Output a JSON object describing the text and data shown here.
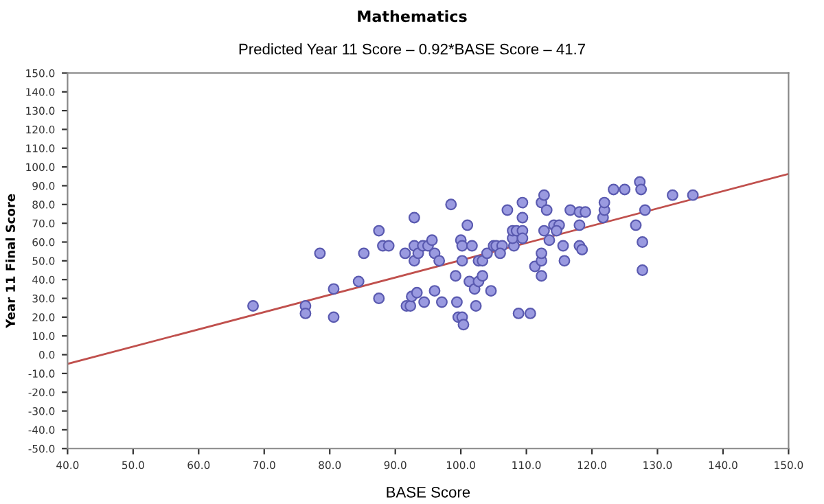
{
  "chart_data": {
    "type": "scatter",
    "title": "Mathematics",
    "subtitle": "Predicted Year 11 Score – 0.92*BASE Score – 41.7",
    "xlabel": "BASE Score",
    "ylabel": "Year 11 Final Score",
    "series": [
      {
        "color": "#9a9ae0",
        "marker": "circle",
        "x": [
          68.3,
          76.3,
          76.3,
          78.5,
          80.6,
          80.6,
          85.2,
          84.4,
          87.5,
          88.1,
          89.0,
          87.5,
          91.5,
          91.7,
          92.9,
          92.9,
          92.9,
          93.5,
          94.2,
          95.0,
          95.6,
          96.0,
          96.7,
          92.3,
          92.5,
          93.3,
          94.4,
          96.0,
          97.1,
          98.5,
          99.2,
          99.4,
          99.6,
          100.2,
          100.4,
          100.0,
          100.2,
          101.0,
          100.2,
          101.7,
          101.3,
          102.1,
          102.7,
          103.3,
          102.3,
          102.7,
          103.3,
          104.0,
          104.6,
          105.0,
          105.4,
          106.3,
          106.0,
          107.1,
          108.1,
          107.9,
          107.9,
          108.5,
          109.4,
          109.4,
          108.8,
          110.6,
          109.4,
          109.4,
          111.3,
          112.3,
          112.3,
          112.3,
          112.7,
          112.3,
          112.7,
          113.1,
          113.5,
          114.2,
          115.0,
          114.6,
          115.6,
          115.8,
          116.7,
          118.1,
          118.1,
          119.0,
          118.1,
          118.5,
          121.7,
          121.9,
          121.9,
          123.3,
          125.0,
          126.7,
          127.3,
          127.5,
          128.1,
          127.7,
          127.7,
          132.3,
          135.4
        ],
        "values": [
          26,
          26,
          22,
          54,
          35,
          20,
          54,
          39,
          66,
          58,
          58,
          30,
          54,
          26,
          73,
          58,
          50,
          54,
          58,
          58,
          61,
          54,
          50,
          26,
          31,
          33,
          28,
          34,
          28,
          80,
          42,
          28,
          20,
          20,
          16,
          61,
          58,
          69,
          50,
          58,
          39,
          35,
          39,
          42,
          26,
          50,
          50,
          54,
          34,
          58,
          58,
          58,
          54,
          77,
          58,
          62,
          66,
          66,
          66,
          62,
          22,
          22,
          81,
          73,
          47,
          42,
          50,
          54,
          66,
          81,
          85,
          77,
          61,
          69,
          69,
          66,
          58,
          50,
          77,
          69,
          76,
          76,
          58,
          56,
          73,
          77,
          81,
          88,
          88,
          69,
          92,
          88,
          77,
          60,
          45,
          85,
          85
        ]
      },
      {
        "type": "line",
        "color": "#c0504d",
        "x": [
          40,
          150
        ],
        "values": [
          -4.9,
          96.3
        ]
      }
    ],
    "xlim": [
      40,
      150
    ],
    "ylim": [
      -50,
      150
    ],
    "xticks": [
      {
        "value": 40,
        "label": "40.0"
      },
      {
        "value": 50,
        "label": "50.0"
      },
      {
        "value": 60,
        "label": "60.0"
      },
      {
        "value": 70,
        "label": "70.0"
      },
      {
        "value": 80,
        "label": "80.0"
      },
      {
        "value": 90,
        "label": "90.0"
      },
      {
        "value": 100,
        "label": "100.0"
      },
      {
        "value": 110,
        "label": "110.0"
      },
      {
        "value": 120,
        "label": "120.0"
      },
      {
        "value": 130,
        "label": "130.0"
      },
      {
        "value": 140,
        "label": "140.0"
      },
      {
        "value": 150,
        "label": "150.0"
      }
    ],
    "yticks": [
      {
        "value": -50,
        "label": "-50.0"
      },
      {
        "value": -40,
        "label": "-40.0"
      },
      {
        "value": -30,
        "label": "-30.0"
      },
      {
        "value": -20,
        "label": "-20.0"
      },
      {
        "value": -10,
        "label": "-10.0"
      },
      {
        "value": 0,
        "label": "0.0"
      },
      {
        "value": 10,
        "label": "10.0"
      },
      {
        "value": 20,
        "label": "20.0"
      },
      {
        "value": 30,
        "label": "30.0"
      },
      {
        "value": 40,
        "label": "40.0"
      },
      {
        "value": 50,
        "label": "50.0"
      },
      {
        "value": 60,
        "label": "60.0"
      },
      {
        "value": 70,
        "label": "70.0"
      },
      {
        "value": 80,
        "label": "80.0"
      },
      {
        "value": 90,
        "label": "90.0"
      },
      {
        "value": 100,
        "label": "100.0"
      },
      {
        "value": 110,
        "label": "110.0"
      },
      {
        "value": 120,
        "label": "120.0"
      },
      {
        "value": 130,
        "label": "130.0"
      },
      {
        "value": 140,
        "label": "140.0"
      },
      {
        "value": 150,
        "label": "150.0"
      }
    ],
    "grid": false,
    "legend": false
  }
}
